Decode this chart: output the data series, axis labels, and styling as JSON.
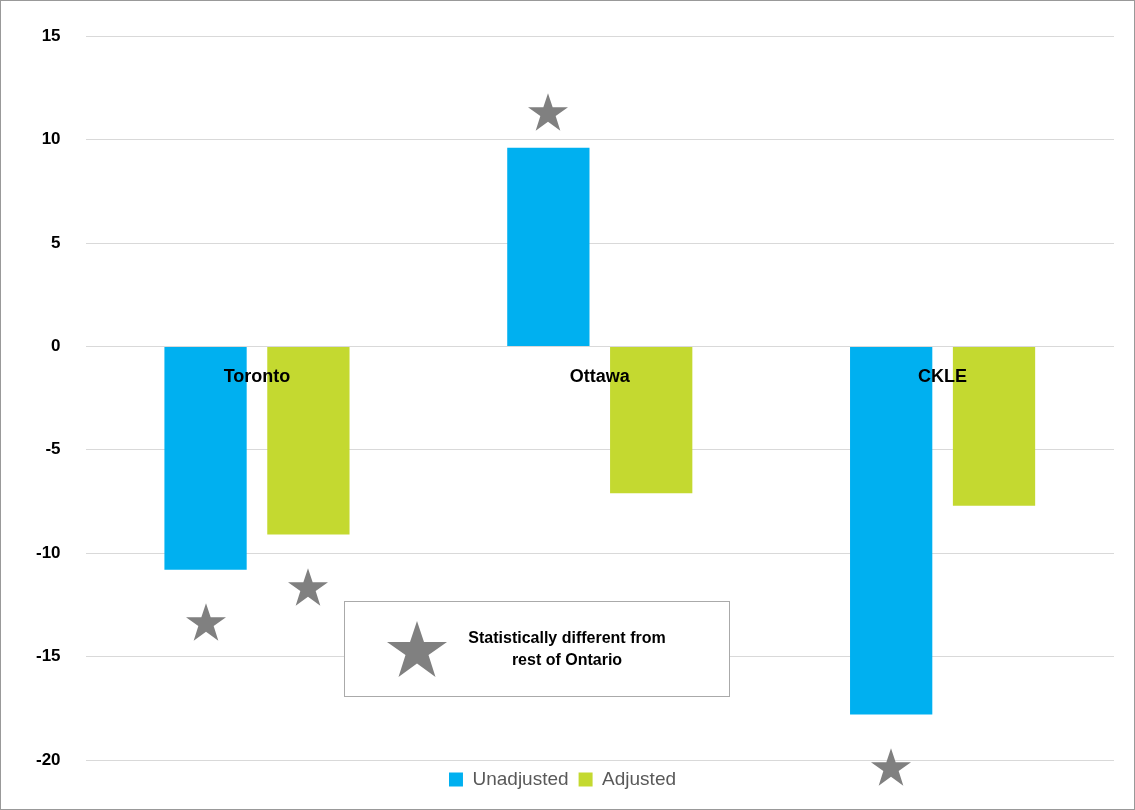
{
  "chart_data": {
    "type": "bar",
    "categories": [
      "Toronto",
      "Ottawa",
      "CKLE"
    ],
    "series": [
      {
        "name": "Unadjusted",
        "color": "#00b0f0",
        "values": [
          -10.8,
          9.6,
          -17.8
        ]
      },
      {
        "name": "Adjusted",
        "color": "#c4d930",
        "values": [
          -9.1,
          -7.1,
          -7.7
        ]
      }
    ],
    "ylim": [
      -20,
      15
    ],
    "yticks": [
      -20,
      -15,
      -10,
      -5,
      0,
      5,
      10,
      15
    ],
    "grid": "y",
    "legend": "bottom",
    "annotations": [
      "Statistically different from rest of Ontario"
    ]
  }
}
